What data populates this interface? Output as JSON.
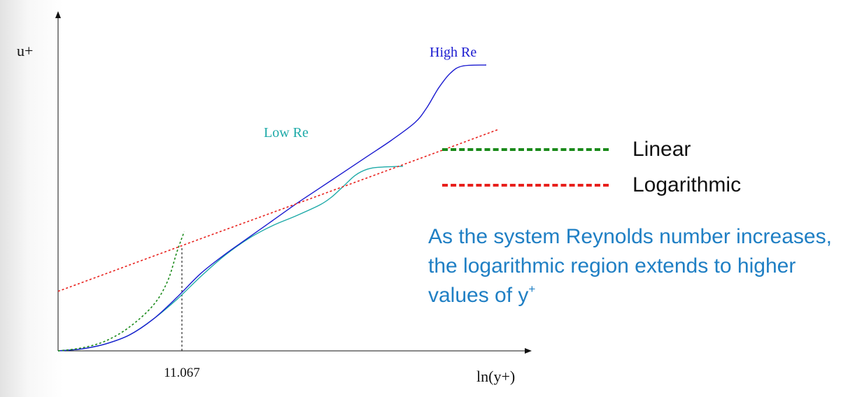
{
  "chart_data": {
    "type": "line",
    "title": "",
    "xlabel": "ln(y+)",
    "ylabel": "u+",
    "x_ticks": [
      {
        "value": 11.067,
        "label": "11.067"
      }
    ],
    "colors": {
      "linear": "#1a8a1a",
      "logarithmic": "#e8201c",
      "low_re": "#1eaaa8",
      "high_re": "#1a1ad0",
      "axis": "#111111",
      "note": "#1f7fc4"
    },
    "series": [
      {
        "name": "Low Re",
        "points": [
          [
            0.0,
            0.0
          ],
          [
            0.1,
            0.02
          ],
          [
            0.2,
            0.07
          ],
          [
            0.3,
            0.16
          ],
          [
            0.4,
            0.32
          ],
          [
            0.5,
            0.52
          ],
          [
            0.6,
            0.75
          ],
          [
            0.7,
            0.96
          ],
          [
            0.8,
            1.13
          ],
          [
            0.9,
            1.26
          ],
          [
            1.0,
            1.36
          ],
          [
            1.1,
            1.47
          ],
          [
            1.15,
            1.55
          ],
          [
            1.2,
            1.66
          ],
          [
            1.25,
            1.77
          ],
          [
            1.3,
            1.83
          ],
          [
            1.35,
            1.85
          ],
          [
            1.45,
            1.86
          ]
        ]
      },
      {
        "name": "High Re",
        "points": [
          [
            0.0,
            0.0
          ],
          [
            0.1,
            0.02
          ],
          [
            0.2,
            0.07
          ],
          [
            0.3,
            0.16
          ],
          [
            0.4,
            0.32
          ],
          [
            0.5,
            0.54
          ],
          [
            0.6,
            0.78
          ],
          [
            0.7,
            0.97
          ],
          [
            0.8,
            1.14
          ],
          [
            0.9,
            1.31
          ],
          [
            1.0,
            1.48
          ],
          [
            1.1,
            1.64
          ],
          [
            1.2,
            1.8
          ],
          [
            1.3,
            1.96
          ],
          [
            1.4,
            2.12
          ],
          [
            1.5,
            2.3
          ],
          [
            1.55,
            2.45
          ],
          [
            1.6,
            2.65
          ],
          [
            1.65,
            2.8
          ],
          [
            1.7,
            2.87
          ],
          [
            1.8,
            2.88
          ]
        ]
      },
      {
        "name": "Linear",
        "points": [
          [
            0.0,
            0.0
          ],
          [
            0.1,
            0.03
          ],
          [
            0.2,
            0.1
          ],
          [
            0.3,
            0.24
          ],
          [
            0.4,
            0.46
          ],
          [
            0.46,
            0.7
          ],
          [
            0.5,
            1.0
          ],
          [
            0.53,
            1.2
          ]
        ]
      },
      {
        "name": "Logarithmic",
        "points": [
          [
            0.0,
            0.6
          ],
          [
            0.6,
            1.13
          ],
          [
            1.0,
            1.48
          ],
          [
            1.5,
            1.92
          ],
          [
            1.85,
            2.23
          ]
        ]
      }
    ],
    "annotations": [
      {
        "text": "Low Re",
        "color": "low_re"
      },
      {
        "text": "High Re",
        "color": "high_re"
      }
    ],
    "marker_line": {
      "x": 11.067,
      "y": 1.06
    },
    "legend": {
      "placement": "right",
      "entries": [
        {
          "label": "Linear",
          "color": "linear",
          "style": "dashed"
        },
        {
          "label": "Logarithmic",
          "color": "logarithmic",
          "style": "dashed"
        }
      ]
    },
    "note": {
      "text": "As the system Reynolds number increases, the logarithmic region extends to higher values of y",
      "sup": "+"
    }
  }
}
